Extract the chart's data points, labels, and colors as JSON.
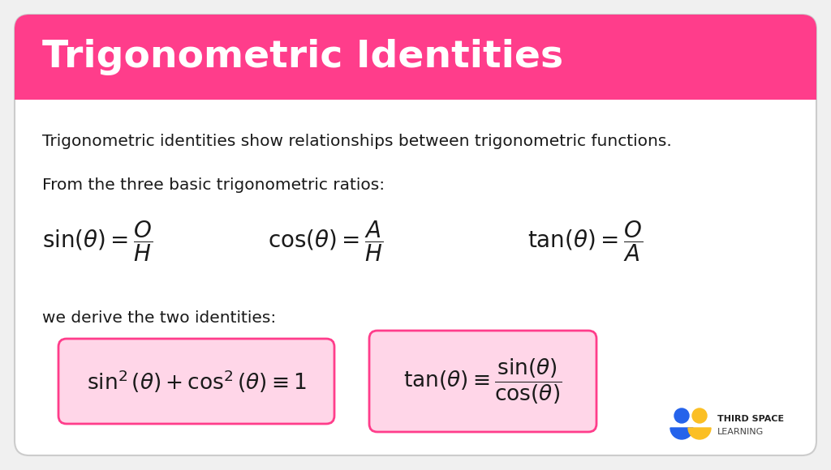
{
  "title": "Trigonometric Identities",
  "title_bg_color": "#FF3D8B",
  "title_text_color": "#FFFFFF",
  "body_bg_color": "#FFFFFF",
  "body_text_color": "#1a1a1a",
  "box_fill_color": "#FFD6E8",
  "box_edge_color": "#FF3D8B",
  "intro_text": "Trigonometric identities show relationships between trigonometric functions.",
  "from_text": "From the three basic trigonometric ratios:",
  "derive_text": "we derive the two identities:",
  "card_bg": "#FFFFFF",
  "card_outline": "#DDDDDD",
  "logo_blue": "#2563EB",
  "logo_yellow": "#FBBF24",
  "figsize": [
    10.24,
    5.8
  ],
  "dpi": 100
}
